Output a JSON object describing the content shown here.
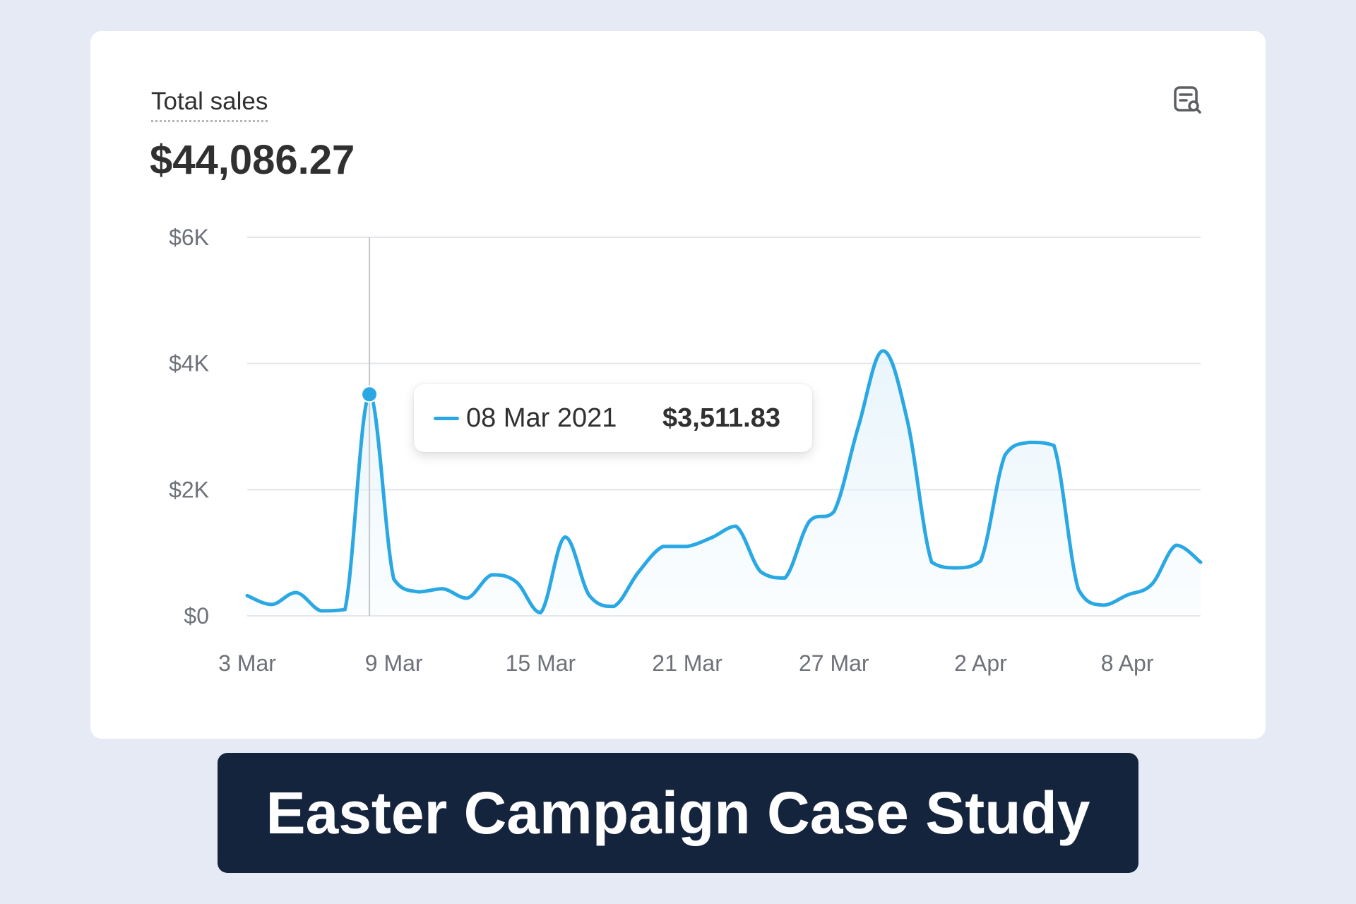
{
  "card": {
    "metric_label": "Total sales",
    "metric_value": "$44,086.27",
    "icon": "report-search-icon"
  },
  "tooltip": {
    "date": "08 Mar 2021",
    "value": "$3,511.83"
  },
  "banner": {
    "title": "Easter Campaign Case Study"
  },
  "colors": {
    "line": "#2aa8e4",
    "fill": "#e6f4fb",
    "grid": "#e3e5e8",
    "banner": "#15243d",
    "background": "#e5eaf5"
  },
  "chart_data": {
    "type": "area",
    "title": "",
    "xlabel": "",
    "ylabel": "",
    "ylim": [
      0,
      6000
    ],
    "y_ticks": [
      {
        "value": 0,
        "label": "$0"
      },
      {
        "value": 2000,
        "label": "$2K"
      },
      {
        "value": 4000,
        "label": "$4K"
      },
      {
        "value": 6000,
        "label": "$6K"
      }
    ],
    "x_ticks": [
      "3 Mar",
      "9 Mar",
      "15 Mar",
      "21 Mar",
      "27 Mar",
      "2 Apr",
      "8 Apr"
    ],
    "legend": "none",
    "grid": true,
    "highlight": {
      "date": "08 Mar 2021",
      "value": 3511.83
    },
    "series": [
      {
        "x": [
          "2021-03-03",
          "2021-03-04",
          "2021-03-05",
          "2021-03-06",
          "2021-03-07",
          "2021-03-08",
          "2021-03-09",
          "2021-03-10",
          "2021-03-11",
          "2021-03-12",
          "2021-03-13",
          "2021-03-14",
          "2021-03-15",
          "2021-03-16",
          "2021-03-17",
          "2021-03-18",
          "2021-03-19",
          "2021-03-20",
          "2021-03-21",
          "2021-03-22",
          "2021-03-23",
          "2021-03-24",
          "2021-03-25",
          "2021-03-26",
          "2021-03-27",
          "2021-03-28",
          "2021-03-29",
          "2021-03-30",
          "2021-03-31",
          "2021-04-01",
          "2021-04-02",
          "2021-04-03",
          "2021-04-04",
          "2021-04-05",
          "2021-04-06",
          "2021-04-07",
          "2021-04-08",
          "2021-04-09",
          "2021-04-10",
          "2021-04-11"
        ],
        "values": [
          320,
          180,
          370,
          80,
          100,
          3512,
          580,
          380,
          430,
          280,
          650,
          540,
          50,
          1250,
          320,
          150,
          690,
          1100,
          1100,
          1240,
          1420,
          700,
          600,
          1500,
          1650,
          3000,
          4200,
          3100,
          850,
          760,
          870,
          2550,
          2750,
          2700,
          420,
          170,
          330,
          500,
          1120,
          850
        ]
      }
    ]
  }
}
